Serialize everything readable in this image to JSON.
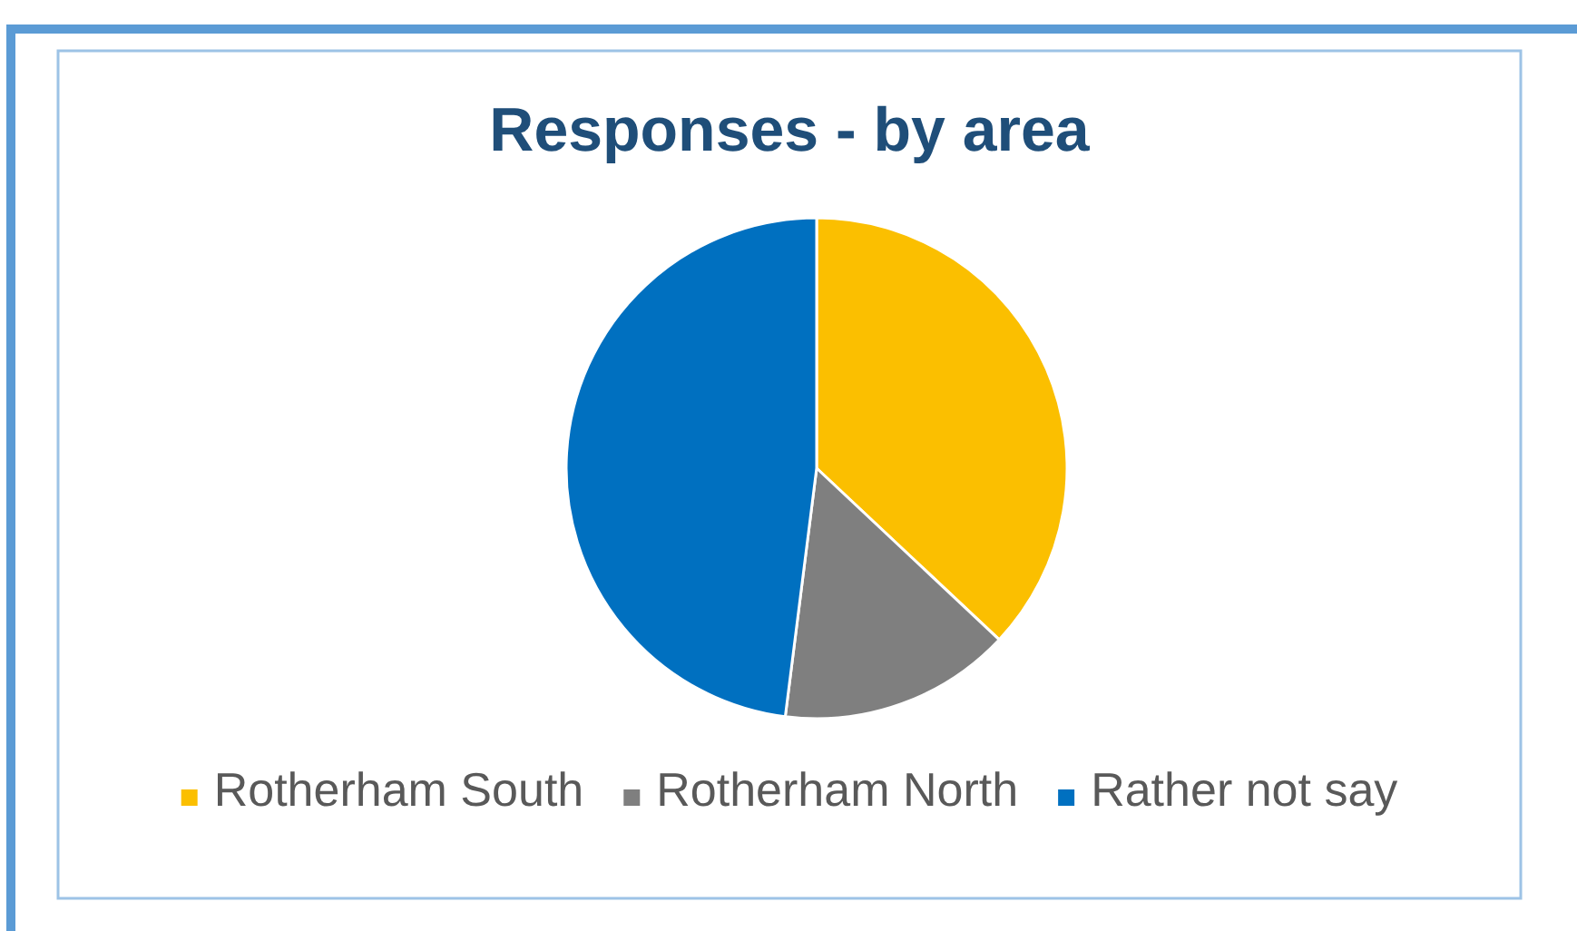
{
  "chart_data": {
    "type": "pie",
    "title": "Responses - by area",
    "categories": [
      "Rotherham South",
      "Rotherham North",
      "Rather not say"
    ],
    "values": [
      37,
      15,
      48
    ],
    "colors": [
      "#fbbf00",
      "#7f7f7f",
      "#0070c0"
    ],
    "legend": "bottom"
  }
}
